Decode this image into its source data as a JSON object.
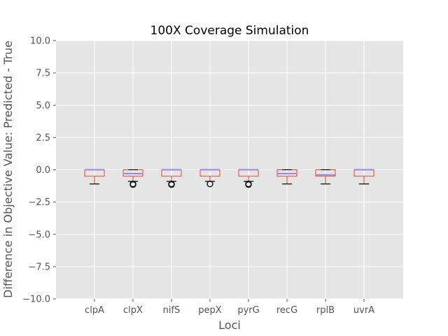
{
  "chart_data": {
    "type": "box",
    "title": "100X Coverage Simulation",
    "xlabel": "Loci",
    "ylabel": "Difference in Objective Value: Predicted - True",
    "ylim": [
      -10.0,
      10.0
    ],
    "yticks": [
      -10.0,
      -7.5,
      -5.0,
      -2.5,
      0.0,
      2.5,
      5.0,
      7.5,
      10.0
    ],
    "ytick_labels": [
      "−10.0",
      "−7.5",
      "−5.0",
      "−2.5",
      "0.0",
      "2.5",
      "5.0",
      "7.5",
      "10.0"
    ],
    "grid": true,
    "categories": [
      "clpA",
      "clpX",
      "nifS",
      "pepX",
      "pyrG",
      "recG",
      "rplB",
      "uvrA"
    ],
    "boxes": [
      {
        "whislo": -1.1,
        "q1": -0.5,
        "med": 0.0,
        "q3": 0.0,
        "whishi": 0.0,
        "fliers": []
      },
      {
        "whislo": -0.9,
        "q1": -0.5,
        "med": -0.3,
        "q3": 0.0,
        "whishi": 0.0,
        "fliers": [
          -1.1,
          -1.15
        ]
      },
      {
        "whislo": -0.9,
        "q1": -0.5,
        "med": 0.0,
        "q3": 0.0,
        "whishi": 0.0,
        "fliers": [
          -1.1,
          -1.15
        ]
      },
      {
        "whislo": -0.9,
        "q1": -0.5,
        "med": 0.0,
        "q3": 0.0,
        "whishi": 0.0,
        "fliers": [
          -1.1
        ]
      },
      {
        "whislo": -0.9,
        "q1": -0.5,
        "med": 0.0,
        "q3": 0.0,
        "whishi": 0.0,
        "fliers": [
          -1.1,
          -1.15
        ]
      },
      {
        "whislo": -1.1,
        "q1": -0.5,
        "med": -0.3,
        "q3": 0.0,
        "whishi": 0.0,
        "fliers": []
      },
      {
        "whislo": -1.1,
        "q1": -0.5,
        "med": -0.4,
        "q3": 0.0,
        "whishi": 0.0,
        "fliers": []
      },
      {
        "whislo": -1.1,
        "q1": -0.5,
        "med": 0.0,
        "q3": 0.0,
        "whishi": 0.0,
        "fliers": []
      }
    ],
    "colors": {
      "background": "#e5e5e5",
      "grid": "#ffffff",
      "box": "#e24a33",
      "median": "#9988dd",
      "whisker_cap": "#000000",
      "flier": "#000000"
    }
  }
}
